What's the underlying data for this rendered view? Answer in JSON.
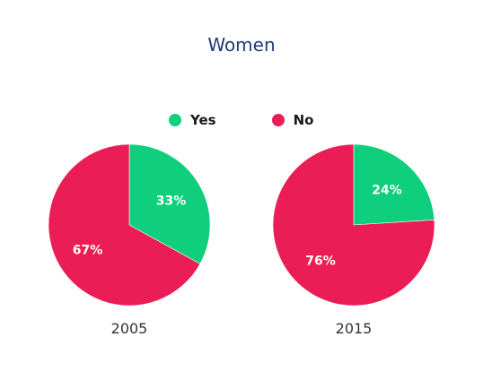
{
  "chart_data": {
    "type": "pie",
    "title": "Women",
    "legend": {
      "placement": "top-center",
      "entries": [
        {
          "label": "Yes",
          "color": "#0fcf7c"
        },
        {
          "label": "No",
          "color": "#eb1d56"
        }
      ]
    },
    "pies": [
      {
        "label": "2005",
        "slices": [
          {
            "category": "Yes",
            "value": 33,
            "display": "33%"
          },
          {
            "category": "No",
            "value": 67,
            "display": "67%"
          }
        ]
      },
      {
        "label": "2015",
        "slices": [
          {
            "category": "Yes",
            "value": 24,
            "display": "24%"
          },
          {
            "category": "No",
            "value": 76,
            "display": "76%"
          }
        ]
      }
    ]
  }
}
